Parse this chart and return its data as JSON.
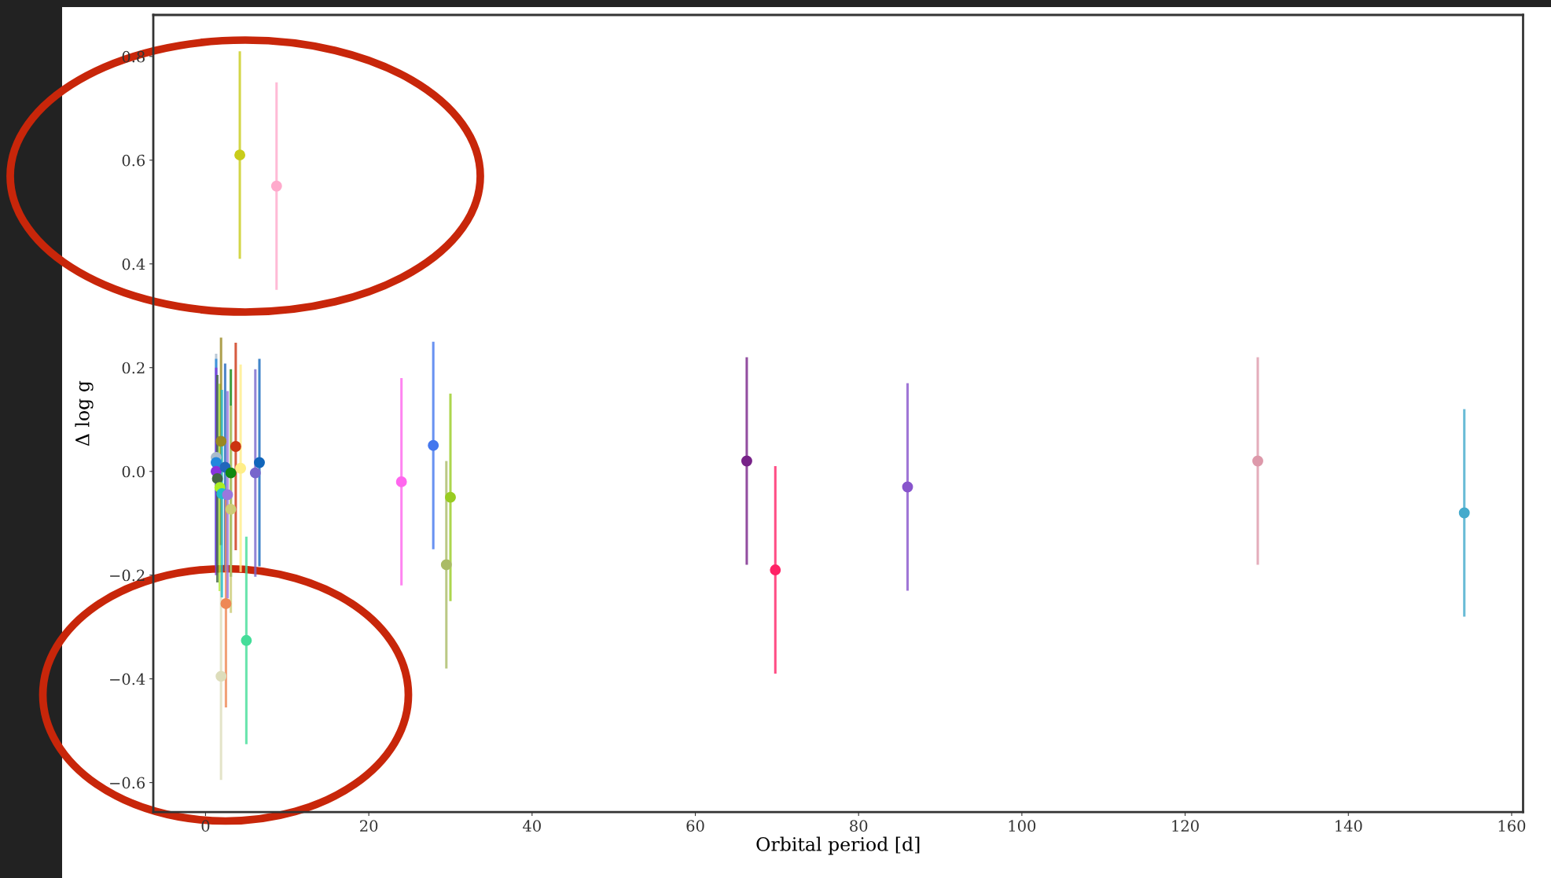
{
  "chart_data": {
    "type": "scatter",
    "xlabel": "Orbital period [d]",
    "ylabel": "Δ log g",
    "marker": "circle",
    "grid": false,
    "x": [
      1.3,
      1.3,
      1.3,
      1.45,
      1.75,
      1.9,
      1.9,
      2.0,
      2.4,
      2.5,
      2.7,
      3.1,
      3.1,
      3.7,
      4.2,
      4.3,
      5.0,
      6.1,
      6.6,
      8.7,
      24.0,
      27.9,
      29.5,
      30.0,
      66.3,
      69.8,
      86.0,
      128.9,
      154.2
    ],
    "values": [
      0.027,
      0.017,
      0.0,
      -0.014,
      -0.031,
      0.058,
      -0.395,
      -0.043,
      0.008,
      -0.255,
      -0.045,
      -0.003,
      -0.073,
      0.048,
      0.61,
      0.006,
      -0.326,
      -0.003,
      0.017,
      0.55,
      -0.02,
      0.05,
      -0.18,
      -0.05,
      0.02,
      -0.19,
      -0.03,
      0.02,
      -0.08
    ],
    "errors": [
      0.2,
      0.2,
      0.2,
      0.2,
      0.2,
      0.2,
      0.2,
      0.2,
      0.2,
      0.2,
      0.2,
      0.2,
      0.2,
      0.2,
      0.2,
      0.2,
      0.2,
      0.2,
      0.2,
      0.2,
      0.2,
      0.2,
      0.2,
      0.2,
      0.2,
      0.2,
      0.2,
      0.2,
      0.2
    ],
    "colors": [
      "#aabbcc",
      "#2288dd",
      "#8833dd",
      "#446644",
      "#aaee22",
      "#998822",
      "#ddddbb",
      "#22bbcc",
      "#2266bb",
      "#ee8855",
      "#9977dd",
      "#118811",
      "#cccc77",
      "#cc3311",
      "#c8cc1a",
      "#ffee88",
      "#44dd99",
      "#7766cc",
      "#1166bb",
      "#ffaacc",
      "#ff66ee",
      "#4477ee",
      "#aabb66",
      "#99cc22",
      "#772288",
      "#ff2266",
      "#8855cc",
      "#dd99aa",
      "#44aacc"
    ],
    "xlim": [
      -6.4,
      161.4
    ],
    "xticks": [
      0,
      20,
      40,
      60,
      80,
      100,
      120,
      140,
      160
    ],
    "ylim": [
      -0.657,
      0.88
    ],
    "yticks": [
      {
        "value": -0.6,
        "label": "−0.6"
      },
      {
        "value": -0.4,
        "label": "−0.4"
      },
      {
        "value": -0.2,
        "label": "−0.2"
      },
      {
        "value": 0.0,
        "label": "0.0"
      },
      0.2,
      0.4,
      0.6,
      0.8
    ]
  }
}
